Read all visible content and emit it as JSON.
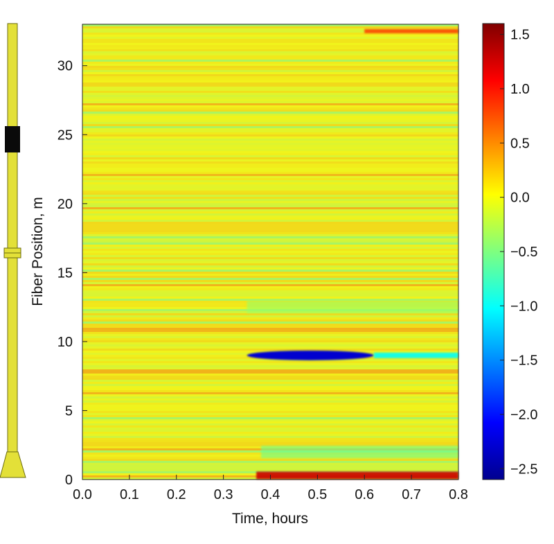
{
  "chart_data": {
    "type": "heatmap",
    "title": "",
    "xlabel": "Time, hours",
    "ylabel": "Fiber Position, m",
    "xlim": [
      0.0,
      0.8
    ],
    "ylim": [
      0,
      33
    ],
    "x_ticks": [
      "0.0",
      "0.1",
      "0.2",
      "0.3",
      "0.4",
      "0.5",
      "0.6",
      "0.7",
      "0.8"
    ],
    "y_ticks": [
      "0",
      "5",
      "10",
      "15",
      "20",
      "25",
      "30"
    ],
    "colorbar": {
      "min": -2.6,
      "max": 1.6,
      "ticks": [
        "1.5",
        "1.0",
        "0.5",
        "0.0",
        "−0.5",
        "−1.0",
        "−1.5",
        "−2.0",
        "−2.5"
      ],
      "colormap": "jet"
    },
    "background_value": 0.0,
    "features": [
      {
        "name": "cold band",
        "x_start": 0.35,
        "x_end": 0.62,
        "y": 9,
        "value": -2.3
      },
      {
        "name": "cold tail",
        "x_start": 0.62,
        "x_end": 0.8,
        "y": 9,
        "value": -1.0
      },
      {
        "name": "hot bottom band",
        "x_start": 0.37,
        "x_end": 0.8,
        "y": 0.3,
        "value": 1.3
      },
      {
        "name": "hot top strip",
        "x_start": 0.6,
        "x_end": 0.8,
        "y": 32.5,
        "value": 0.8
      },
      {
        "name": "cool band",
        "x_start": 0.38,
        "x_end": 0.8,
        "y": 2,
        "value": -0.6
      },
      {
        "name": "cool band",
        "x_start": 0.35,
        "x_end": 0.8,
        "y": 12.5,
        "value": -0.4
      }
    ]
  },
  "wellbore": {
    "color": "#e3e038",
    "packer_color": "#111111",
    "description_icons": [
      "pipe-icon",
      "packer-icon",
      "coupling-icon",
      "nozzle-icon"
    ]
  }
}
